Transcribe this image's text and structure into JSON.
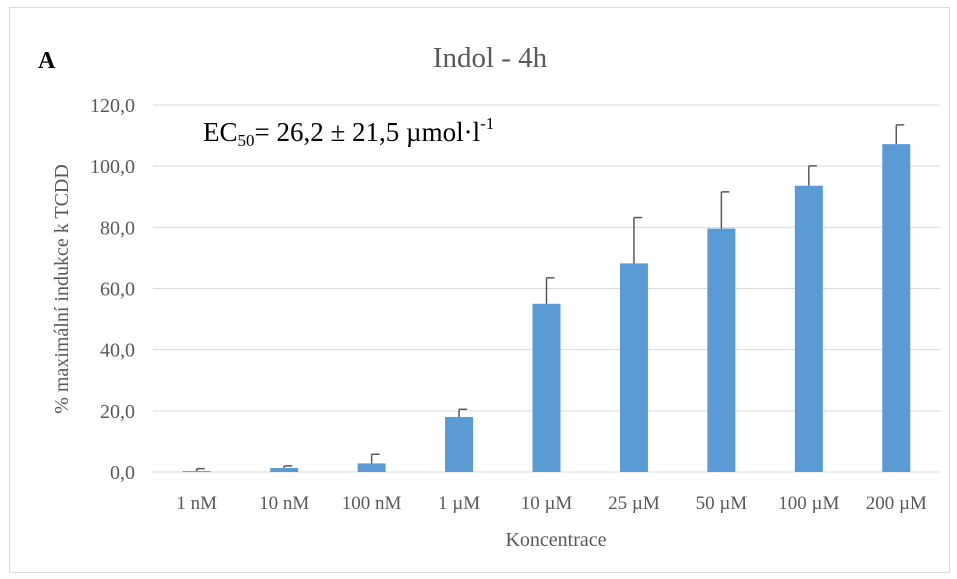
{
  "panel_label": "A",
  "chart_data": {
    "type": "bar",
    "title": "Indol - 4h",
    "xlabel": "Koncentrace",
    "ylabel": "% maximální indukce k TCDD",
    "categories": [
      "1 nM",
      "10 nM",
      "100 nM",
      "1 µM",
      "10 µM",
      "25 µM",
      "50 µM",
      "100 µM",
      "200 µM"
    ],
    "series": [
      {
        "values": [
          0.3,
          1.3,
          2.8,
          18.0,
          55.0,
          68.2,
          79.6,
          93.6,
          107.2
        ],
        "errors": [
          0.8,
          0.7,
          3.0,
          2.5,
          8.5,
          15.0,
          12.0,
          6.5,
          6.3
        ],
        "color": "#5b9bd5"
      }
    ],
    "ylim": [
      0,
      120
    ],
    "yticks": [
      0,
      20,
      40,
      60,
      80,
      100,
      120
    ],
    "ytick_labels": [
      "0,0",
      "20,0",
      "40,0",
      "60,0",
      "80,0",
      "100,0",
      "120,0"
    ],
    "grid": true,
    "legend": "none",
    "annotation": {
      "prefix": "EC",
      "subscript": "50",
      "text": "= 26,2 ± 21,5 µmol·l",
      "superscript": "-1"
    },
    "colors": {
      "bar": "#5b9bd5",
      "error_bar": "#595959",
      "grid": "#d9d9d9",
      "text": "#595959"
    }
  }
}
